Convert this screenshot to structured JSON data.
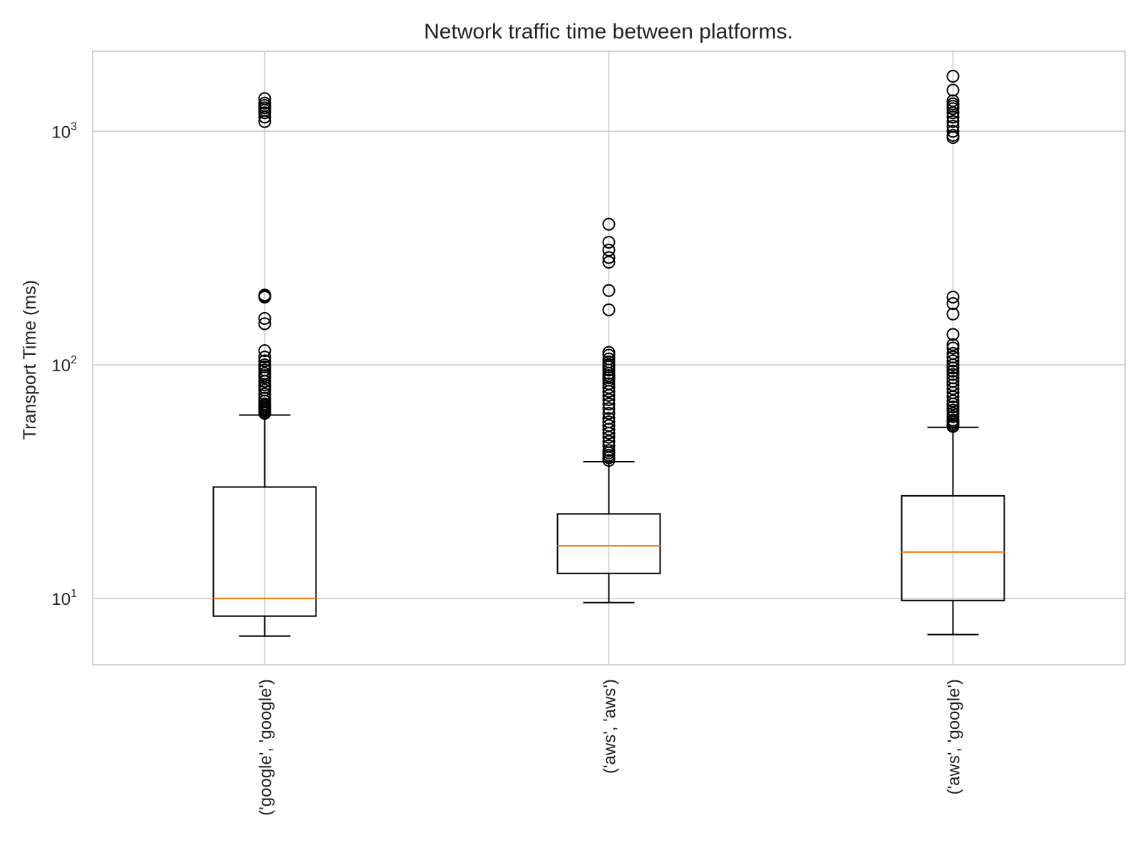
{
  "chart_data": {
    "type": "box",
    "title": "Network traffic time between platforms.",
    "xlabel": "",
    "ylabel": "Transport Time (ms)",
    "y_scale": "log",
    "ylim": [
      5.2,
      2200
    ],
    "y_ticks": [
      {
        "value": 10,
        "base": "10",
        "exp": "1"
      },
      {
        "value": 100,
        "base": "10",
        "exp": "2"
      },
      {
        "value": 1000,
        "base": "10",
        "exp": "3"
      }
    ],
    "grid": true,
    "categories": [
      "('google', 'google')",
      "('aws', 'aws')",
      "('aws', 'google')"
    ],
    "boxes": [
      {
        "category": "('google', 'google')",
        "whisker_low": 6.9,
        "q1": 8.4,
        "median": 10,
        "q3": 30,
        "whisker_high": 61,
        "outliers": [
          62,
          63,
          64,
          65,
          66,
          67,
          68,
          70,
          72,
          75,
          78,
          80,
          82,
          85,
          88,
          90,
          92,
          95,
          98,
          100,
          104,
          108,
          115,
          150,
          158,
          195,
          197,
          199,
          1100,
          1150,
          1200,
          1230,
          1260,
          1290,
          1320,
          1380
        ]
      },
      {
        "category": "('aws', 'aws')",
        "whisker_low": 9.6,
        "q1": 12.8,
        "median": 16.8,
        "q3": 23,
        "whisker_high": 38.5,
        "outliers": [
          39,
          40,
          41,
          42,
          43,
          45,
          47,
          49,
          51,
          53,
          55,
          57,
          59,
          62,
          65,
          68,
          71,
          74,
          77,
          80,
          83,
          86,
          88,
          90,
          92,
          95,
          98,
          100,
          103,
          106,
          110,
          113,
          172,
          208,
          275,
          288,
          310,
          335,
          400
        ]
      },
      {
        "category": "('aws', 'google')",
        "whisker_low": 7,
        "q1": 9.8,
        "median": 15.8,
        "q3": 27.5,
        "whisker_high": 54,
        "outliers": [
          54.5,
          55,
          56,
          57,
          58,
          60,
          62,
          64,
          66,
          68,
          70,
          73,
          76,
          79,
          82,
          85,
          88,
          91,
          94,
          97,
          100,
          104,
          108,
          112,
          118,
          122,
          135,
          165,
          183,
          195,
          940,
          960,
          1000,
          1050,
          1100,
          1150,
          1200,
          1250,
          1280,
          1310,
          1350,
          1500,
          1720
        ]
      }
    ],
    "colors": {
      "box": "#000000",
      "median": "#ff7f0e",
      "grid": "#cccccc",
      "spine": "#cccccc"
    }
  }
}
